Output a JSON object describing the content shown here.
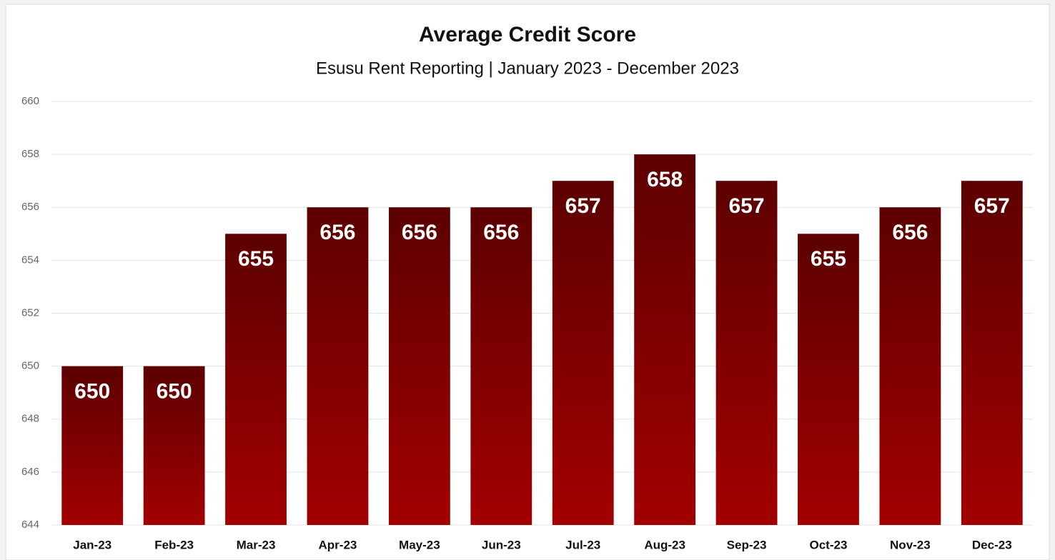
{
  "chart_data": {
    "type": "bar",
    "title": "Average Credit Score",
    "subtitle": "Esusu Rent Reporting | January 2023 - December 2023",
    "categories": [
      "Jan-23",
      "Feb-23",
      "Mar-23",
      "Apr-23",
      "May-23",
      "Jun-23",
      "Jul-23",
      "Aug-23",
      "Sep-23",
      "Oct-23",
      "Nov-23",
      "Dec-23"
    ],
    "values": [
      650,
      650,
      655,
      656,
      656,
      656,
      657,
      658,
      657,
      655,
      656,
      657
    ],
    "color": "#8b0000",
    "ylim": [
      644,
      660
    ],
    "yticks": [
      644,
      646,
      648,
      650,
      652,
      654,
      656,
      658,
      660
    ],
    "grid": true
  }
}
